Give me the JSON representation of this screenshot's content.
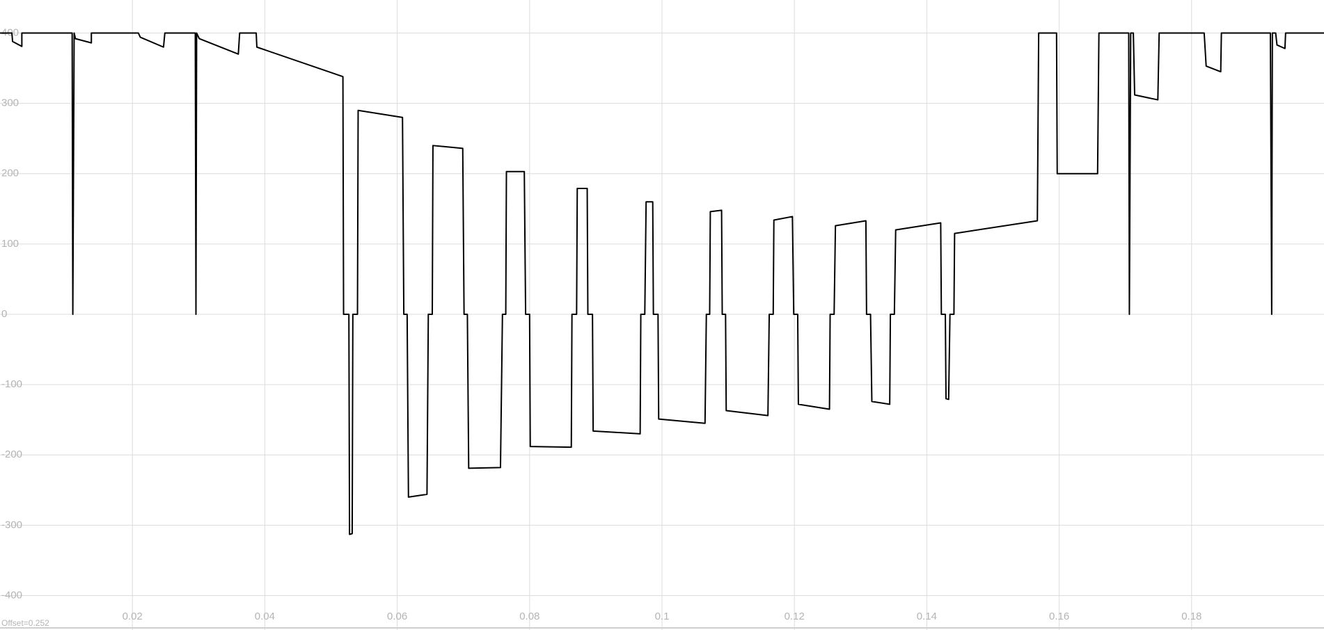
{
  "chart_data": {
    "type": "line",
    "color": "#000000",
    "grid": true,
    "xlim": [
      0,
      0.2
    ],
    "ylim": [
      -449,
      447
    ],
    "xticks": [
      0.02,
      0.04,
      0.06,
      0.08,
      0.1,
      0.12,
      0.14,
      0.16,
      0.18
    ],
    "yticks": [
      -400,
      -300,
      -200,
      -100,
      0,
      100,
      200,
      300,
      400
    ],
    "annotation": "Offset=0.252",
    "x": [
      0,
      0.0018,
      0.0019,
      0.0033,
      0.0033,
      0.0109,
      0.011,
      0.0112,
      0.0114,
      0.0138,
      0.0138,
      0.0209,
      0.0212,
      0.0247,
      0.0249,
      0.0295,
      0.0296,
      0.0297,
      0.0301,
      0.036,
      0.0362,
      0.0387,
      0.0388,
      0.0518,
      0.0519,
      0.0527,
      0.0528,
      0.0532,
      0.0533,
      0.054,
      0.0541,
      0.0608,
      0.061,
      0.0615,
      0.0617,
      0.0645,
      0.0647,
      0.0653,
      0.0654,
      0.0699,
      0.0701,
      0.0706,
      0.0708,
      0.0756,
      0.0759,
      0.0764,
      0.0765,
      0.0792,
      0.0794,
      0.08,
      0.0801,
      0.0863,
      0.0864,
      0.0871,
      0.0872,
      0.0887,
      0.0888,
      0.0895,
      0.0896,
      0.0967,
      0.0968,
      0.0974,
      0.0976,
      0.0986,
      0.0987,
      0.0994,
      0.0995,
      0.1065,
      0.1067,
      0.1072,
      0.1073,
      0.109,
      0.1091,
      0.1096,
      0.1097,
      0.116,
      0.1162,
      0.1168,
      0.1169,
      0.1197,
      0.1199,
      0.1205,
      0.1206,
      0.1253,
      0.1254,
      0.126,
      0.1262,
      0.1308,
      0.1309,
      0.1315,
      0.1317,
      0.1344,
      0.1345,
      0.1351,
      0.1353,
      0.1421,
      0.1422,
      0.1428,
      0.1429,
      0.1433,
      0.1435,
      0.1441,
      0.1442,
      0.1567,
      0.1569,
      0.1596,
      0.1597,
      0.1658,
      0.166,
      0.1705,
      0.1706,
      0.1708,
      0.1712,
      0.1714,
      0.1749,
      0.1751,
      0.1819,
      0.1822,
      0.1844,
      0.1845,
      0.1919,
      0.1921,
      0.1922,
      0.1927,
      0.1929,
      0.1941,
      0.1942,
      0.2
    ],
    "values": [
      400,
      400,
      388,
      381,
      400,
      400,
      0,
      400,
      392,
      386,
      400,
      400,
      394,
      380,
      400,
      400,
      0,
      400,
      392,
      370,
      400,
      400,
      380,
      338,
      0,
      0,
      -313,
      -312,
      0,
      0,
      290,
      280,
      0,
      0,
      -260,
      -256,
      0,
      0,
      240,
      236,
      0,
      0,
      -219,
      -218,
      0,
      0,
      203,
      203,
      0,
      0,
      -188,
      -189,
      0,
      0,
      179,
      179,
      0,
      0,
      -166,
      -170,
      0,
      0,
      160,
      160,
      0,
      0,
      -149,
      -155,
      0,
      0,
      146,
      148,
      0,
      0,
      -137,
      -144,
      0,
      0,
      134,
      139,
      0,
      0,
      -128,
      -135,
      0,
      0,
      126,
      133,
      0,
      0,
      -124,
      -128,
      0,
      0,
      120,
      130,
      0,
      0,
      -120,
      -121,
      0,
      0,
      115,
      133,
      400,
      400,
      200,
      200,
      400,
      400,
      0,
      400,
      400,
      312,
      305,
      400,
      400,
      353,
      345,
      400,
      400,
      0,
      400,
      400,
      383,
      378,
      400,
      400
    ]
  }
}
